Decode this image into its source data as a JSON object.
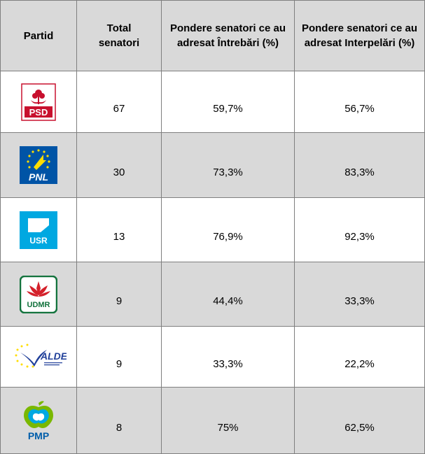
{
  "header": {
    "party": "Partid",
    "total": "Total senatori",
    "questions": "Pondere senatori ce au adresat  Întrebări (%)",
    "interpellations": "Pondere senatori ce au adresat Interpelări (%)"
  },
  "rows": [
    {
      "logo_text": "PSD",
      "logo_icon": "rose-icon",
      "total": "67",
      "questions": "59,7%",
      "interpellations": "56,7%"
    },
    {
      "logo_text": "PNL",
      "logo_icon": "stars-arrow-icon",
      "total": "30",
      "questions": "73,3%",
      "interpellations": "83,3%"
    },
    {
      "logo_text": "USR",
      "logo_icon": "flag-shape-icon",
      "total": "13",
      "questions": "76,9%",
      "interpellations": "92,3%"
    },
    {
      "logo_text": "UDMR",
      "logo_icon": "tulip-icon",
      "total": "9",
      "questions": "44,4%",
      "interpellations": "33,3%"
    },
    {
      "logo_text": "ALDE",
      "logo_icon": "bird-icon",
      "total": "9",
      "questions": "33,3%",
      "interpellations": "22,2%"
    },
    {
      "logo_text": "PMP",
      "logo_icon": "apple-icon",
      "total": "8",
      "questions": "75%",
      "interpellations": "62,5%"
    }
  ],
  "colors": {
    "header_bg": "#d9d9d9",
    "psd_red": "#c8102e",
    "pnl_blue": "#0054a6",
    "pnl_yellow": "#ffdd00",
    "usr_blue": "#00a8e1",
    "udmr_green": "#12723c",
    "udmr_red": "#d4202a",
    "alde_blue": "#21409a",
    "pmp_blue": "#005daa",
    "pmp_green": "#7ab800"
  }
}
